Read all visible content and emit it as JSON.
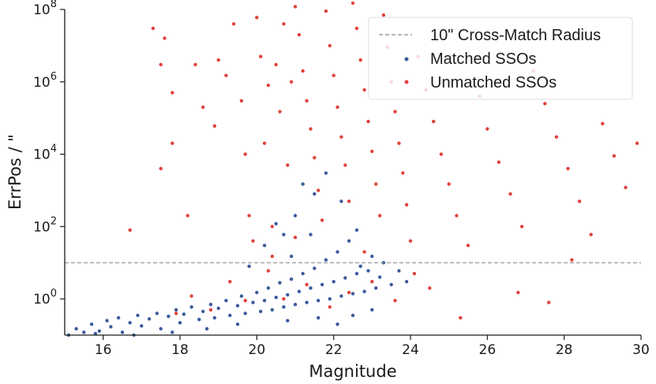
{
  "chart_data": {
    "type": "scatter",
    "xlabel": "Magnitude",
    "ylabel": "ErrPos / \"",
    "xlim": [
      15,
      30
    ],
    "ylim_log10": [
      -1,
      8
    ],
    "y_scale": "log",
    "grid": false,
    "legend_position": "top-right",
    "x_ticks": [
      16,
      18,
      20,
      22,
      24,
      26,
      28,
      30
    ],
    "y_ticks": [
      {
        "value": 1,
        "base": "10",
        "exp": "0"
      },
      {
        "value": 100,
        "base": "10",
        "exp": "2"
      },
      {
        "value": 10000,
        "base": "10",
        "exp": "4"
      },
      {
        "value": 1000000,
        "base": "10",
        "exp": "6"
      },
      {
        "value": 100000000,
        "base": "10",
        "exp": "8"
      }
    ],
    "reference_line": {
      "label": "10\" Cross-Match Radius",
      "y": 10,
      "color": "#888888"
    },
    "series": [
      {
        "name": "Matched SSOs",
        "color": "#3b5b9b",
        "points": [
          [
            15.1,
            0.1
          ],
          [
            15.3,
            0.15
          ],
          [
            15.5,
            0.12
          ],
          [
            15.7,
            0.2
          ],
          [
            15.9,
            0.13
          ],
          [
            16.1,
            0.25
          ],
          [
            16.2,
            0.17
          ],
          [
            16.4,
            0.3
          ],
          [
            16.5,
            0.12
          ],
          [
            16.7,
            0.22
          ],
          [
            16.9,
            0.35
          ],
          [
            17.0,
            0.18
          ],
          [
            17.2,
            0.28
          ],
          [
            17.4,
            0.4
          ],
          [
            17.5,
            0.15
          ],
          [
            17.7,
            0.33
          ],
          [
            17.9,
            0.5
          ],
          [
            18.0,
            0.22
          ],
          [
            18.1,
            0.38
          ],
          [
            18.3,
            0.6
          ],
          [
            18.5,
            0.27
          ],
          [
            18.6,
            0.45
          ],
          [
            18.8,
            0.7
          ],
          [
            18.9,
            0.3
          ],
          [
            19.0,
            0.55
          ],
          [
            19.2,
            0.9
          ],
          [
            19.3,
            0.35
          ],
          [
            19.5,
            0.65
          ],
          [
            19.6,
            1.2
          ],
          [
            19.7,
            0.4
          ],
          [
            19.9,
            0.8
          ],
          [
            20.0,
            1.5
          ],
          [
            20.1,
            0.45
          ],
          [
            20.2,
            0.9
          ],
          [
            20.3,
            2.0
          ],
          [
            20.4,
            0.5
          ],
          [
            20.5,
            1.1
          ],
          [
            20.6,
            2.8
          ],
          [
            20.7,
            0.6
          ],
          [
            20.8,
            1.3
          ],
          [
            20.9,
            3.5
          ],
          [
            21.0,
            0.7
          ],
          [
            21.1,
            1.6
          ],
          [
            21.2,
            5.0
          ],
          [
            21.3,
            0.8
          ],
          [
            21.4,
            2.0
          ],
          [
            21.5,
            7.0
          ],
          [
            21.6,
            0.9
          ],
          [
            21.7,
            2.5
          ],
          [
            21.8,
            12
          ],
          [
            21.9,
            1.0
          ],
          [
            22.0,
            3.0
          ],
          [
            22.1,
            20
          ],
          [
            22.2,
            1.2
          ],
          [
            22.3,
            3.8
          ],
          [
            22.4,
            40
          ],
          [
            22.5,
            1.4
          ],
          [
            22.6,
            5.0
          ],
          [
            22.7,
            8.0
          ],
          [
            22.8,
            1.6
          ],
          [
            22.9,
            6.0
          ],
          [
            23.0,
            15
          ],
          [
            23.1,
            2.0
          ],
          [
            23.2,
            4.0
          ],
          [
            23.3,
            10
          ],
          [
            23.5,
            2.5
          ],
          [
            23.7,
            6.0
          ],
          [
            23.9,
            3.0
          ],
          [
            21.0,
            200
          ],
          [
            21.5,
            800
          ],
          [
            21.2,
            1500
          ],
          [
            21.8,
            3000
          ],
          [
            20.7,
            60
          ],
          [
            20.5,
            120
          ],
          [
            22.2,
            500
          ],
          [
            20.2,
            30
          ],
          [
            21.4,
            60
          ],
          [
            20.9,
            15
          ],
          [
            22.6,
            80
          ],
          [
            19.8,
            8
          ],
          [
            22.1,
            0.2
          ],
          [
            21.6,
            0.3
          ],
          [
            20.8,
            0.25
          ],
          [
            23.0,
            0.5
          ],
          [
            22.5,
            0.35
          ],
          [
            19.5,
            0.2
          ],
          [
            18.7,
            0.15
          ],
          [
            17.8,
            0.12
          ],
          [
            16.8,
            0.1
          ],
          [
            15.8,
            0.11
          ]
        ]
      },
      {
        "name": "Unmatched SSOs",
        "color": "#e0423c",
        "points": [
          [
            17.3,
            30000000
          ],
          [
            17.5,
            3000000
          ],
          [
            17.6,
            16000000
          ],
          [
            17.8,
            500000
          ],
          [
            17.5,
            4000
          ],
          [
            17.8,
            20000
          ],
          [
            18.4,
            3000000
          ],
          [
            18.2,
            200
          ],
          [
            16.7,
            80
          ],
          [
            18.6,
            200000
          ],
          [
            18.9,
            60000
          ],
          [
            19.0,
            4000000
          ],
          [
            19.2,
            1500000
          ],
          [
            19.4,
            40000000
          ],
          [
            19.6,
            300000
          ],
          [
            19.7,
            10000
          ],
          [
            19.8,
            200
          ],
          [
            20.0,
            60000000
          ],
          [
            20.1,
            5000000
          ],
          [
            20.2,
            20000
          ],
          [
            20.3,
            800000
          ],
          [
            20.4,
            100
          ],
          [
            20.5,
            3000000
          ],
          [
            20.6,
            150000
          ],
          [
            20.7,
            40000000
          ],
          [
            20.8,
            5000
          ],
          [
            20.9,
            1000000
          ],
          [
            21.0,
            120000000
          ],
          [
            21.1,
            20000000
          ],
          [
            21.2,
            2000000
          ],
          [
            21.3,
            300000
          ],
          [
            21.4,
            50000
          ],
          [
            21.5,
            8000
          ],
          [
            21.6,
            1000
          ],
          [
            21.7,
            150
          ],
          [
            21.8,
            90000000
          ],
          [
            21.9,
            10000000
          ],
          [
            22.0,
            1500000
          ],
          [
            22.1,
            200000
          ],
          [
            22.2,
            30000
          ],
          [
            22.3,
            5000
          ],
          [
            22.4,
            500
          ],
          [
            22.5,
            150000000
          ],
          [
            22.6,
            30000000
          ],
          [
            22.7,
            4000000
          ],
          [
            22.8,
            600000
          ],
          [
            22.9,
            80000
          ],
          [
            23.0,
            12000
          ],
          [
            23.1,
            1500
          ],
          [
            23.2,
            200
          ],
          [
            23.3,
            70000000
          ],
          [
            23.4,
            9000000
          ],
          [
            23.5,
            1000000
          ],
          [
            23.6,
            150000
          ],
          [
            23.7,
            20000
          ],
          [
            23.8,
            3000
          ],
          [
            23.9,
            400
          ],
          [
            24.0,
            40
          ],
          [
            24.2,
            5000000
          ],
          [
            24.4,
            600000
          ],
          [
            24.6,
            80000
          ],
          [
            24.8,
            10000
          ],
          [
            25.0,
            1500
          ],
          [
            25.2,
            200
          ],
          [
            25.5,
            30
          ],
          [
            25.8,
            400000
          ],
          [
            26.0,
            50000
          ],
          [
            26.3,
            6000
          ],
          [
            26.6,
            800
          ],
          [
            26.9,
            100
          ],
          [
            27.2,
            2000000
          ],
          [
            27.5,
            250000
          ],
          [
            27.8,
            30000
          ],
          [
            28.1,
            4000
          ],
          [
            28.4,
            500
          ],
          [
            28.7,
            60
          ],
          [
            29.0,
            70000
          ],
          [
            29.3,
            9000
          ],
          [
            29.6,
            1200
          ],
          [
            29.9,
            20000
          ],
          [
            28.2,
            12
          ],
          [
            27.6,
            0.8
          ],
          [
            26.8,
            1.5
          ],
          [
            25.3,
            0.3
          ],
          [
            24.5,
            2.0
          ],
          [
            24.1,
            5.0
          ],
          [
            23.6,
            0.9
          ],
          [
            23.0,
            3.0
          ],
          [
            22.4,
            1.5
          ],
          [
            21.9,
            0.6
          ],
          [
            21.3,
            2.5
          ],
          [
            20.7,
            1.0
          ],
          [
            20.3,
            6.0
          ],
          [
            19.7,
            0.9
          ],
          [
            19.3,
            3.0
          ],
          [
            18.8,
            0.5
          ],
          [
            18.3,
            1.2
          ],
          [
            17.9,
            0.4
          ],
          [
            21.0,
            50
          ],
          [
            20.4,
            15
          ],
          [
            19.9,
            40
          ],
          [
            22.8,
            20
          ]
        ]
      }
    ]
  }
}
